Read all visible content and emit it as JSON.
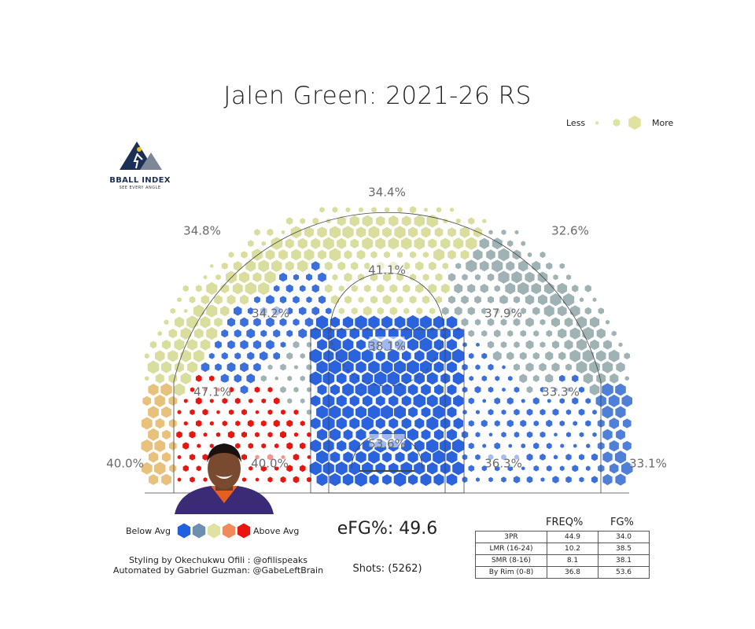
{
  "title": "Jalen Green: 2021-26 RS",
  "size_legend": {
    "less": "Less",
    "more": "More"
  },
  "logo": {
    "name": "BBALL INDEX",
    "tagline": "SEE EVERY ANGLE"
  },
  "color_legend": {
    "below": "Below Avg",
    "above": "Above Avg",
    "colors": [
      "#1f5fe0",
      "#6f8fb0",
      "#dfe2a0",
      "#f08a5d",
      "#e8160f"
    ]
  },
  "efg": "eFG%: 49.6",
  "shots": "Shots: (5262)",
  "credits": [
    "Styling by Okechukwu Ofili : @ofilispeaks",
    "Automated by Gabriel Guzman: @GabeLeftBrain"
  ],
  "chart_data": {
    "type": "hexbin shot chart",
    "zones": [
      {
        "name": "Left wing 3",
        "fg_pct": "34.8%",
        "color": "#d9dd9e"
      },
      {
        "name": "Top of key 3",
        "fg_pct": "34.4%",
        "color": "#d9dd9e"
      },
      {
        "name": "Right wing 3",
        "fg_pct": "32.6%",
        "color": "#9fb2b4"
      },
      {
        "name": "Left corner 3",
        "fg_pct": "40.0%",
        "color": "#e8c27c"
      },
      {
        "name": "Right corner 3",
        "fg_pct": "33.1%",
        "color": "#4f7fd6"
      },
      {
        "name": "Top long mid-range",
        "fg_pct": "41.1%",
        "color": "#d9dd9e"
      },
      {
        "name": "Left elbow long mid-range",
        "fg_pct": "34.2%",
        "color": "#3a6fdc"
      },
      {
        "name": "Right elbow long mid-range",
        "fg_pct": "37.9%",
        "color": "#9fb2b4"
      },
      {
        "name": "Left baseline long mid-range",
        "fg_pct": "47.1%",
        "color": "#e8160f"
      },
      {
        "name": "Right baseline long mid-range",
        "fg_pct": "33.3%",
        "color": "#3a6fdc"
      },
      {
        "name": "Free throw area",
        "fg_pct": "38.1%",
        "color": "#2b63dd"
      },
      {
        "name": "Left short mid-range",
        "fg_pct": "40.0%",
        "color": "#9fb2b4"
      },
      {
        "name": "Right short mid-range",
        "fg_pct": "36.3%",
        "color": "#3a6fdc"
      },
      {
        "name": "Restricted area",
        "fg_pct": "53.6%",
        "color": "#2b63dd"
      }
    ],
    "table": {
      "columns": [
        "",
        "FREQ%",
        "FG%"
      ],
      "rows": [
        {
          "zone": "3PR",
          "freq": "44.9",
          "fg": "34.0"
        },
        {
          "zone": "LMR (16-24)",
          "freq": "10.2",
          "fg": "38.5"
        },
        {
          "zone": "SMR (8-16)",
          "freq": "8.1",
          "fg": "38.1"
        },
        {
          "zone": "By Rim (0-8)",
          "freq": "36.8",
          "fg": "53.6"
        }
      ]
    }
  }
}
